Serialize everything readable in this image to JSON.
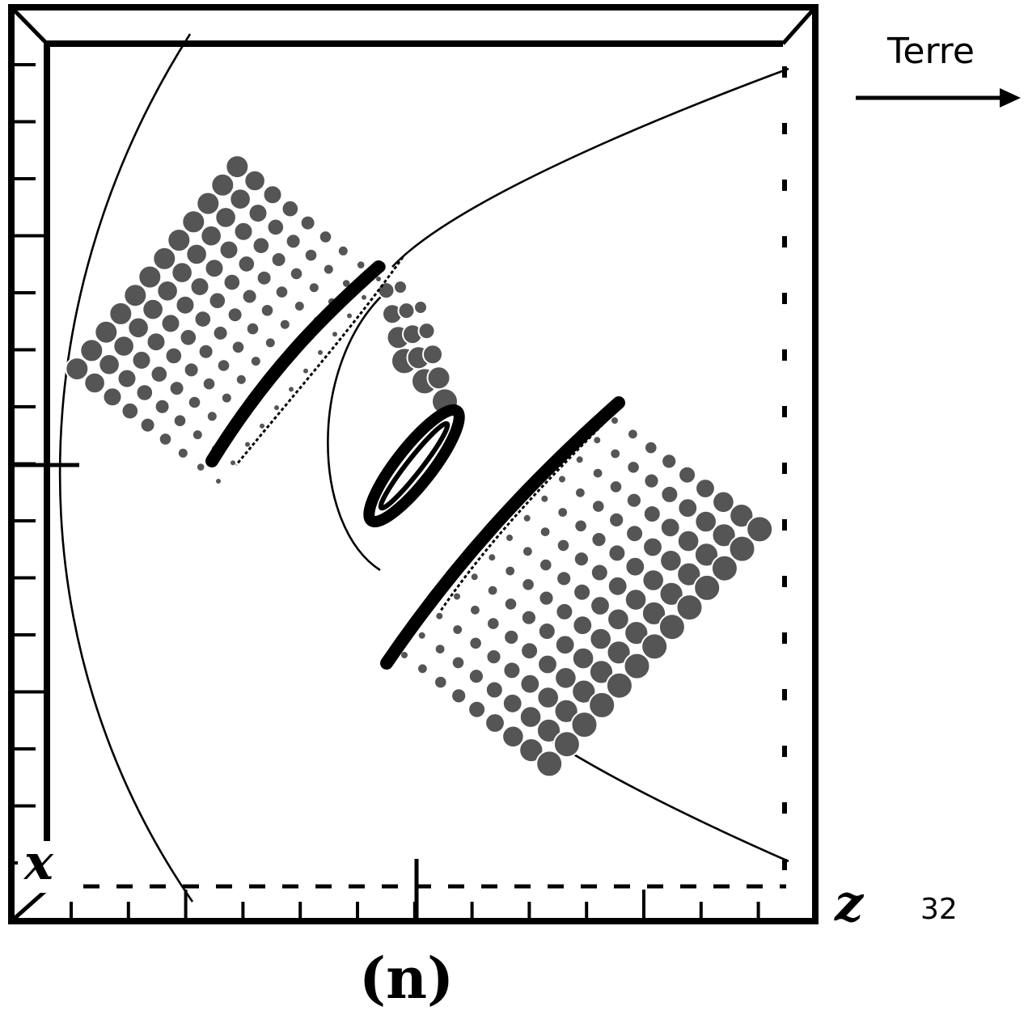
{
  "labels": {
    "earth": "Terre",
    "figure_number": "32",
    "panel": "(n)",
    "axis_x": "x",
    "axis_z": "z"
  },
  "colors": {
    "frame": "#000000",
    "dots": "#555555",
    "dot_outline": "#ffffff",
    "background": "#ffffff"
  },
  "icons": {
    "earth_direction": "arrow-right-icon"
  }
}
